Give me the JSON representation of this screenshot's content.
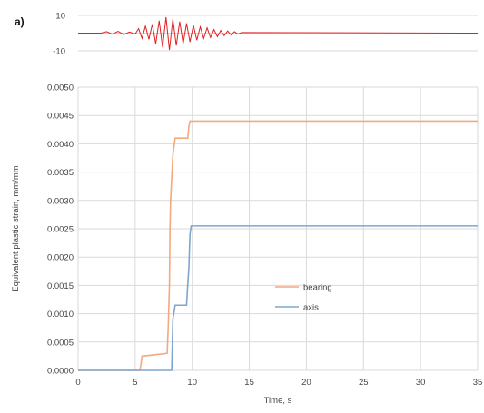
{
  "panel_label": "a)",
  "chart_data": [
    {
      "type": "line",
      "title": "",
      "xlabel": "",
      "ylabel": "",
      "ylim": [
        -10,
        10
      ],
      "yticks": [
        "10",
        "-10"
      ],
      "grid": true,
      "series": [
        {
          "name": "",
          "color": "#e02020",
          "x": [
            0,
            2,
            2.5,
            3,
            3.5,
            4,
            4.5,
            5,
            5.3,
            5.6,
            5.9,
            6.2,
            6.5,
            6.8,
            7.1,
            7.4,
            7.7,
            8.0,
            8.3,
            8.6,
            8.9,
            9.2,
            9.5,
            9.8,
            10.1,
            10.4,
            10.7,
            11.0,
            11.3,
            11.6,
            11.9,
            12.2,
            12.5,
            12.8,
            13.1,
            13.4,
            13.7,
            14.0,
            14.3,
            35
          ],
          "y": [
            0,
            0,
            0.8,
            -0.6,
            1.0,
            -0.8,
            0.6,
            -0.5,
            2.5,
            -3.0,
            4.0,
            -3.5,
            5.0,
            -6.0,
            7.0,
            -8.0,
            9.0,
            -9.5,
            8.0,
            -7.0,
            6.5,
            -6.0,
            5.5,
            -5.0,
            4.5,
            -4.0,
            3.5,
            -3.0,
            3.0,
            -2.5,
            2.0,
            -2.0,
            1.5,
            -1.5,
            1.2,
            -1.0,
            0.8,
            -0.6,
            0.3,
            0
          ]
        }
      ]
    },
    {
      "type": "line",
      "title": "",
      "xlabel": "Time, s",
      "ylabel": "Equivalent plastic strain, mm/mm",
      "xlim": [
        0,
        35
      ],
      "ylim": [
        0,
        0.005
      ],
      "xticks": [
        "0",
        "5",
        "10",
        "15",
        "20",
        "25",
        "30",
        "35"
      ],
      "yticks": [
        "0.0000",
        "0.0005",
        "0.0010",
        "0.0015",
        "0.0020",
        "0.0025",
        "0.0030",
        "0.0035",
        "0.0040",
        "0.0045",
        "0.0050"
      ],
      "grid": true,
      "legend": "center-right",
      "series": [
        {
          "name": "bearing",
          "color": "#f4a97f",
          "x": [
            0,
            5.4,
            5.5,
            5.6,
            7.8,
            7.9,
            8.0,
            8.05,
            8.1,
            8.2,
            8.3,
            8.5,
            8.7,
            9.6,
            9.7,
            9.8,
            35
          ],
          "y": [
            0,
            0,
            0.0001,
            0.00025,
            0.0003,
            0.0008,
            0.0015,
            0.0025,
            0.003,
            0.0034,
            0.0038,
            0.0041,
            0.0041,
            0.0041,
            0.0043,
            0.0044,
            0.0044
          ]
        },
        {
          "name": "axis",
          "color": "#7ea6cf",
          "x": [
            0,
            8.2,
            8.3,
            8.5,
            8.7,
            9.5,
            9.6,
            9.7,
            9.8,
            9.9,
            35
          ],
          "y": [
            0,
            0,
            0.0009,
            0.00115,
            0.00115,
            0.00115,
            0.0015,
            0.0018,
            0.0024,
            0.00255,
            0.00255
          ]
        }
      ]
    }
  ]
}
